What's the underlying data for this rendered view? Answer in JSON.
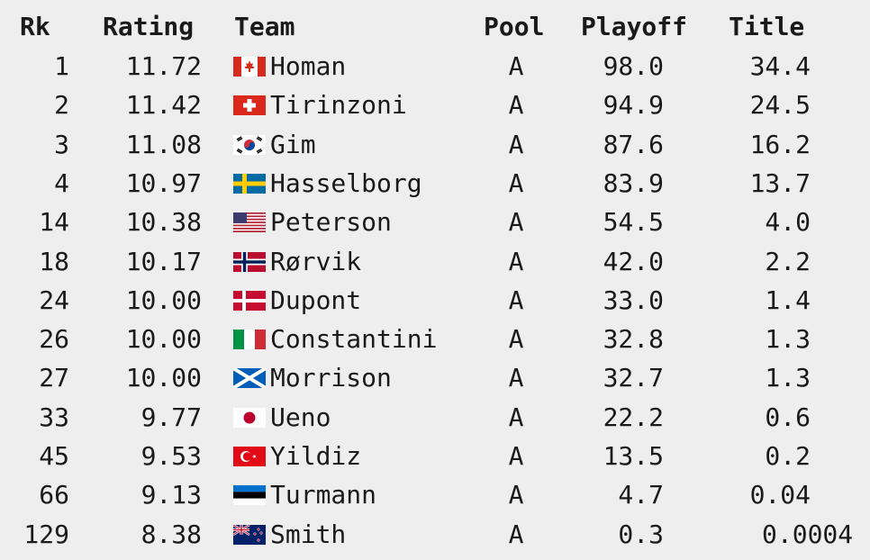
{
  "headers": {
    "rank": "Rk",
    "rating": "Rating",
    "team": "Team",
    "pool": "Pool",
    "playoff": "Playoff",
    "title": "Title"
  },
  "rows": [
    {
      "rank": "1",
      "rating": "11.72",
      "team": "Homan",
      "pool": "A",
      "playoff": "98.0",
      "title": "34.4",
      "flag": "canada-flag-icon"
    },
    {
      "rank": "2",
      "rating": "11.42",
      "team": "Tirinzoni",
      "pool": "A",
      "playoff": "94.9",
      "title": "24.5",
      "flag": "switzerland-flag-icon"
    },
    {
      "rank": "3",
      "rating": "11.08",
      "team": "Gim",
      "pool": "A",
      "playoff": "87.6",
      "title": "16.2",
      "flag": "south-korea-flag-icon"
    },
    {
      "rank": "4",
      "rating": "10.97",
      "team": "Hasselborg",
      "pool": "A",
      "playoff": "83.9",
      "title": "13.7",
      "flag": "sweden-flag-icon"
    },
    {
      "rank": "14",
      "rating": "10.38",
      "team": "Peterson",
      "pool": "A",
      "playoff": "54.5",
      "title": "4.0",
      "flag": "usa-flag-icon"
    },
    {
      "rank": "18",
      "rating": "10.17",
      "team": "Rørvik",
      "pool": "A",
      "playoff": "42.0",
      "title": "2.2",
      "flag": "norway-flag-icon"
    },
    {
      "rank": "24",
      "rating": "10.00",
      "team": "Dupont",
      "pool": "A",
      "playoff": "33.0",
      "title": "1.4",
      "flag": "denmark-flag-icon"
    },
    {
      "rank": "26",
      "rating": "10.00",
      "team": "Constantini",
      "pool": "A",
      "playoff": "32.8",
      "title": "1.3",
      "flag": "italy-flag-icon"
    },
    {
      "rank": "27",
      "rating": "10.00",
      "team": "Morrison",
      "pool": "A",
      "playoff": "32.7",
      "title": "1.3",
      "flag": "scotland-flag-icon"
    },
    {
      "rank": "33",
      "rating": "9.77",
      "team": "Ueno",
      "pool": "A",
      "playoff": "22.2",
      "title": "0.6",
      "flag": "japan-flag-icon"
    },
    {
      "rank": "45",
      "rating": "9.53",
      "team": "Yildiz",
      "pool": "A",
      "playoff": "13.5",
      "title": "0.2",
      "flag": "turkey-flag-icon"
    },
    {
      "rank": "66",
      "rating": "9.13",
      "team": "Turmann",
      "pool": "A",
      "playoff": "4.7",
      "title": "0.04",
      "flag": "estonia-flag-icon"
    },
    {
      "rank": "129",
      "rating": "8.38",
      "team": "Smith",
      "pool": "A",
      "playoff": "0.3",
      "title": "0.0004",
      "flag": "new-zealand-flag-icon"
    }
  ],
  "colors": {
    "background": "#eeeeee",
    "text": "#1a1a1a"
  }
}
